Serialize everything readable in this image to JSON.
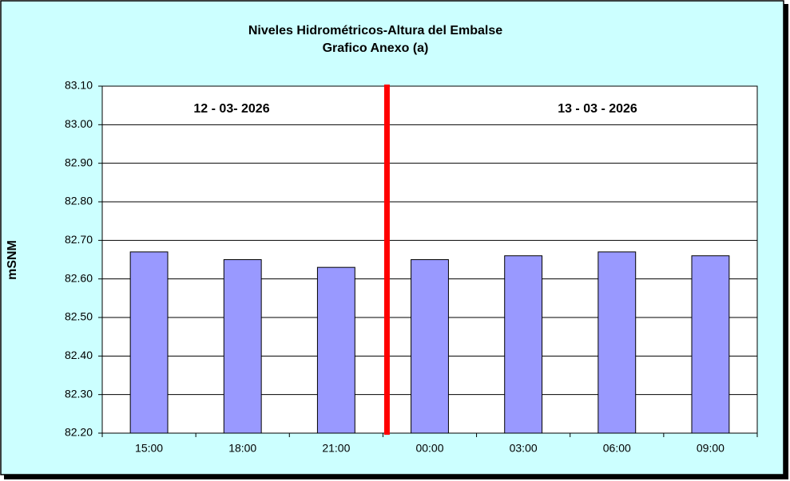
{
  "chart_data": {
    "type": "bar",
    "title": "Niveles Hidrométricos-Altura del Embalse",
    "subtitle": "Grafico Anexo (a)",
    "y_label": "mSNM",
    "annotations": [
      "12 - 03- 2026",
      "13 - 03 - 2026"
    ],
    "categories": [
      "15:00",
      "18:00",
      "21:00",
      "00:00",
      "03:00",
      "06:00",
      "09:00"
    ],
    "values": [
      82.67,
      82.65,
      82.63,
      82.65,
      82.66,
      82.67,
      82.66
    ],
    "color": "#9999ff",
    "ylim": [
      82.2,
      83.1
    ],
    "yticks": [
      {
        "value": 82.2,
        "label": "82.20"
      },
      {
        "value": 82.3,
        "label": "82.30"
      },
      {
        "value": 82.4,
        "label": "82.40"
      },
      {
        "value": 82.5,
        "label": "82.50"
      },
      {
        "value": 82.6,
        "label": "82.60"
      },
      {
        "value": 82.7,
        "label": "82.70"
      },
      {
        "value": 82.8,
        "label": "82.80"
      },
      {
        "value": 82.9,
        "label": "82.90"
      },
      {
        "value": 83.0,
        "label": "83.00"
      },
      {
        "value": 83.1,
        "label": "83.10"
      }
    ],
    "grid": true
  }
}
